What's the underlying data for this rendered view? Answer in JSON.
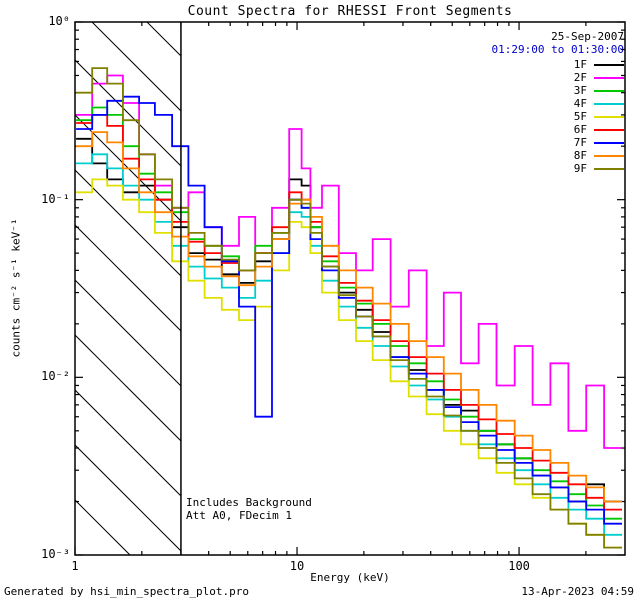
{
  "title": "Count Spectra for RHESSI Front Segments",
  "annotations": {
    "date": "25-Sep-2007",
    "time_range": "01:29:00 to 01:30:00",
    "time_range_color": "#0000cc",
    "includes_background": "Includes Background",
    "att_line": "Att A0, FDecim 1"
  },
  "footer": {
    "left": "Generated by hsi_min_spectra_plot.pro",
    "right": "13-Apr-2023 04:59"
  },
  "chart_data": {
    "type": "line",
    "subtype": "step-histogram",
    "title": "Count Spectra for RHESSI Front Segments",
    "xlabel": "Energy (keV)",
    "ylabel": "counts cm⁻² s⁻¹ keV⁻¹",
    "x_scale": "log",
    "y_scale": "log",
    "xlim": [
      1,
      300
    ],
    "ylim": [
      0.001,
      1
    ],
    "x_ticks": [
      1,
      10,
      100
    ],
    "x_tick_labels": [
      "1",
      "10",
      "100"
    ],
    "y_ticks": [
      0.001,
      0.01,
      0.1,
      1
    ],
    "y_tick_labels": [
      "10⁻³",
      "10⁻²",
      "10⁻¹",
      "10⁰"
    ],
    "grid": false,
    "legend_position": "top-right",
    "hatch_region": {
      "x_min": 1,
      "x_max": 3
    },
    "frame_color": "#000000",
    "x": [
      1.1,
      1.3,
      1.5,
      1.8,
      2.1,
      2.5,
      3.0,
      3.5,
      4.2,
      5.0,
      6.0,
      7.0,
      8.5,
      10,
      11,
      12,
      14,
      17,
      20,
      24,
      29,
      35,
      42,
      50,
      60,
      72,
      87,
      105,
      126,
      152,
      183,
      220,
      265
    ],
    "series": [
      {
        "name": "1F",
        "color": "#000000",
        "values": [
          0.22,
          0.16,
          0.13,
          0.11,
          0.12,
          0.1,
          0.07,
          0.05,
          0.046,
          0.038,
          0.034,
          0.045,
          0.06,
          0.13,
          0.12,
          0.07,
          0.042,
          0.03,
          0.024,
          0.018,
          0.013,
          0.011,
          0.0085,
          0.007,
          0.0065,
          0.005,
          0.0042,
          0.0035,
          0.0028,
          0.0024,
          0.002,
          0.0025,
          0.002
        ]
      },
      {
        "name": "2F",
        "color": "#ff00ff",
        "values": [
          0.3,
          0.45,
          0.5,
          0.35,
          0.18,
          0.12,
          0.09,
          0.11,
          0.07,
          0.055,
          0.08,
          0.05,
          0.09,
          0.25,
          0.15,
          0.09,
          0.12,
          0.05,
          0.04,
          0.06,
          0.025,
          0.04,
          0.015,
          0.03,
          0.012,
          0.02,
          0.009,
          0.015,
          0.007,
          0.012,
          0.005,
          0.009,
          0.004
        ]
      },
      {
        "name": "3F",
        "color": "#00c800",
        "values": [
          0.28,
          0.33,
          0.3,
          0.2,
          0.14,
          0.11,
          0.085,
          0.06,
          0.055,
          0.048,
          0.04,
          0.055,
          0.065,
          0.1,
          0.09,
          0.07,
          0.045,
          0.032,
          0.026,
          0.02,
          0.015,
          0.012,
          0.0095,
          0.0075,
          0.006,
          0.005,
          0.0042,
          0.0035,
          0.003,
          0.0026,
          0.0022,
          0.0019,
          0.0016
        ]
      },
      {
        "name": "4F",
        "color": "#00cdcd",
        "values": [
          0.16,
          0.18,
          0.15,
          0.12,
          0.1,
          0.075,
          0.055,
          0.042,
          0.036,
          0.032,
          0.028,
          0.035,
          0.05,
          0.085,
          0.08,
          0.055,
          0.035,
          0.025,
          0.019,
          0.015,
          0.0115,
          0.009,
          0.0075,
          0.006,
          0.005,
          0.0042,
          0.0035,
          0.003,
          0.0025,
          0.0021,
          0.0018,
          0.0016,
          0.0013
        ]
      },
      {
        "name": "5F",
        "color": "#e0e000",
        "values": [
          0.11,
          0.13,
          0.12,
          0.1,
          0.085,
          0.065,
          0.045,
          0.035,
          0.028,
          0.024,
          0.021,
          0.025,
          0.04,
          0.075,
          0.07,
          0.05,
          0.03,
          0.021,
          0.016,
          0.0125,
          0.0095,
          0.0078,
          0.0062,
          0.005,
          0.0042,
          0.0035,
          0.0029,
          0.0025,
          0.0021,
          0.0018,
          0.0015,
          0.0013,
          0.0011
        ]
      },
      {
        "name": "6F",
        "color": "#ff0000",
        "values": [
          0.27,
          0.3,
          0.26,
          0.17,
          0.13,
          0.1,
          0.075,
          0.058,
          0.05,
          0.044,
          0.04,
          0.05,
          0.07,
          0.11,
          0.1,
          0.075,
          0.048,
          0.034,
          0.027,
          0.021,
          0.016,
          0.013,
          0.0105,
          0.0085,
          0.007,
          0.0058,
          0.0048,
          0.004,
          0.0034,
          0.0029,
          0.0025,
          0.0021,
          0.0018
        ]
      },
      {
        "name": "7F",
        "color": "#0000ff",
        "values": [
          0.25,
          0.3,
          0.36,
          0.38,
          0.35,
          0.3,
          0.2,
          0.12,
          0.07,
          0.045,
          0.025,
          0.006,
          0.05,
          0.1,
          0.09,
          0.06,
          0.04,
          0.028,
          0.022,
          0.017,
          0.013,
          0.0105,
          0.0085,
          0.0068,
          0.0056,
          0.0047,
          0.0039,
          0.0033,
          0.0028,
          0.0024,
          0.002,
          0.0018,
          0.0015
        ]
      },
      {
        "name": "8F",
        "color": "#ff8700",
        "values": [
          0.2,
          0.24,
          0.21,
          0.15,
          0.11,
          0.085,
          0.062,
          0.048,
          0.042,
          0.037,
          0.033,
          0.042,
          0.06,
          0.095,
          0.1,
          0.08,
          0.055,
          0.04,
          0.032,
          0.026,
          0.02,
          0.016,
          0.013,
          0.0105,
          0.0085,
          0.007,
          0.0057,
          0.0047,
          0.0039,
          0.0033,
          0.0028,
          0.0024,
          0.002
        ]
      },
      {
        "name": "9F",
        "color": "#808000",
        "values": [
          0.4,
          0.55,
          0.45,
          0.28,
          0.18,
          0.13,
          0.09,
          0.065,
          0.055,
          0.046,
          0.04,
          0.05,
          0.065,
          0.1,
          0.095,
          0.065,
          0.042,
          0.029,
          0.022,
          0.017,
          0.0125,
          0.0098,
          0.0078,
          0.0061,
          0.005,
          0.004,
          0.0033,
          0.0027,
          0.0022,
          0.0018,
          0.0015,
          0.0013,
          0.0011
        ]
      }
    ]
  }
}
